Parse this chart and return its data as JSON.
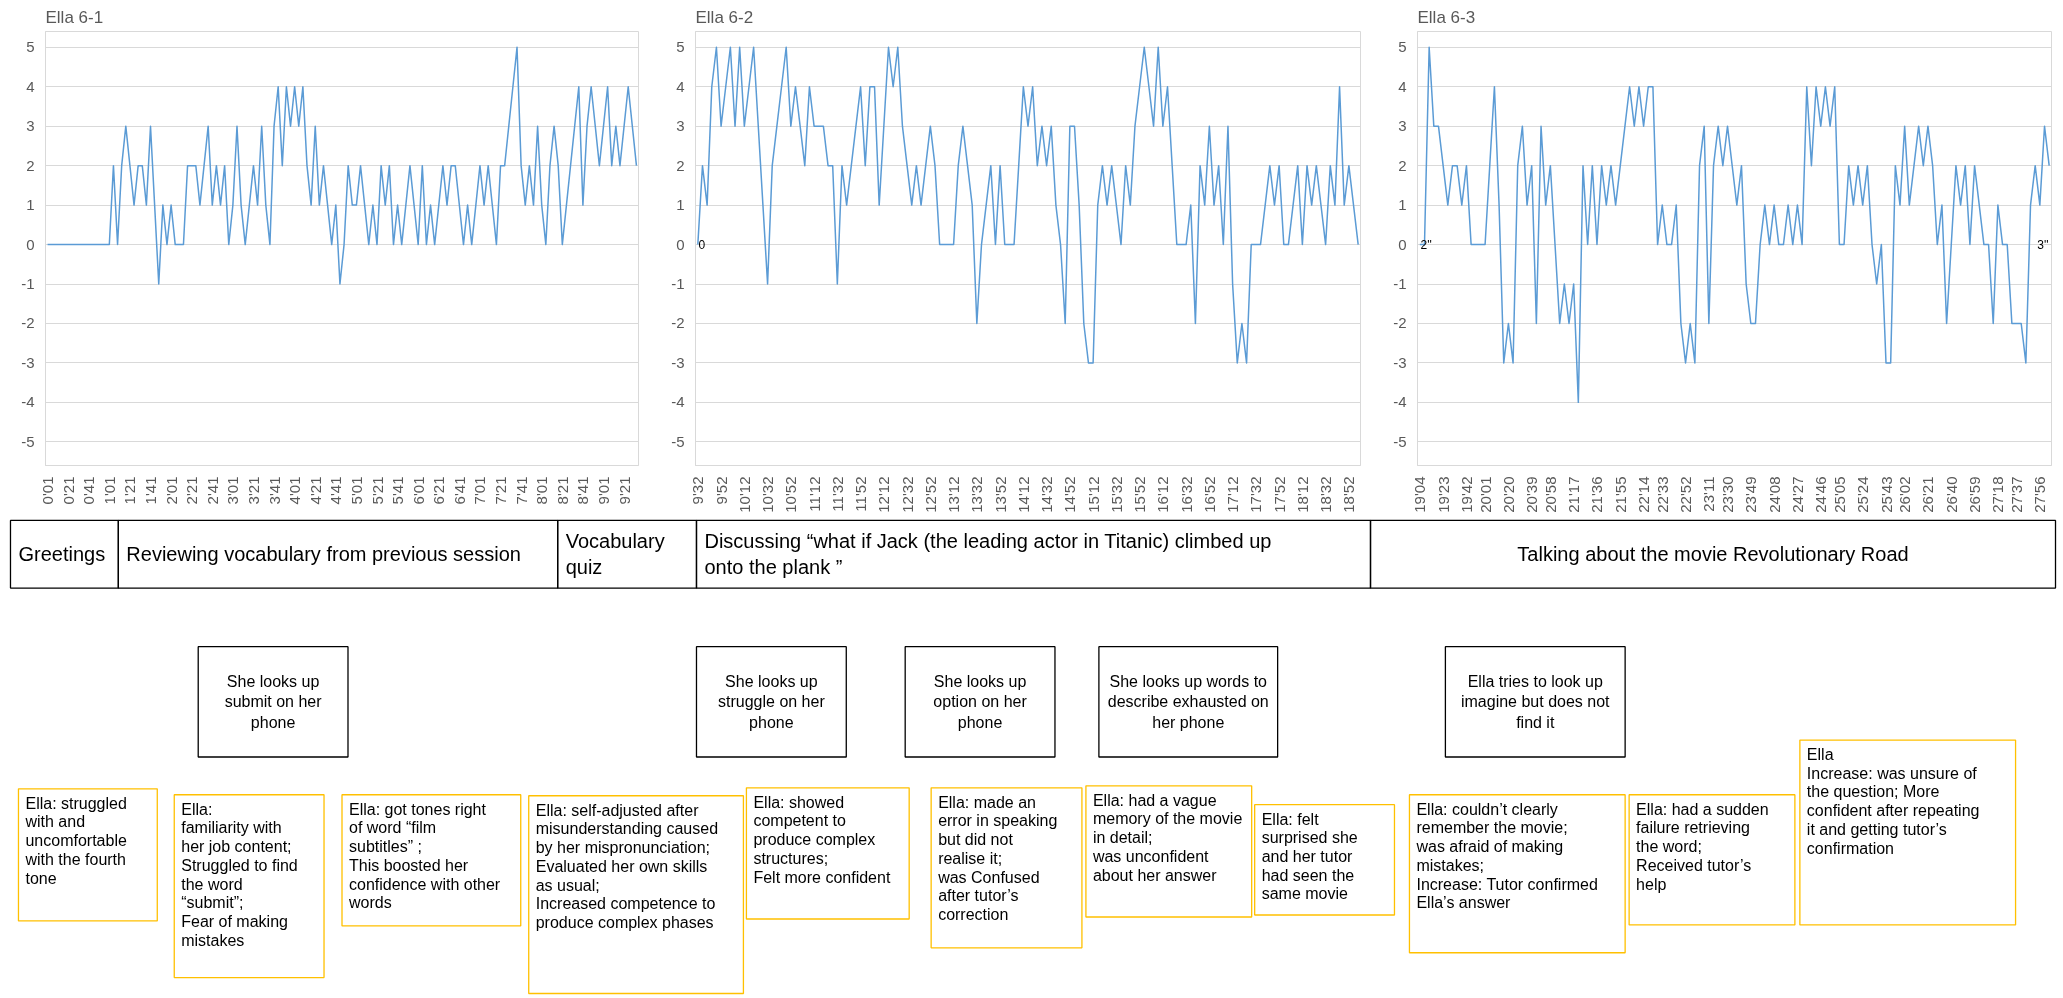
{
  "chart_data": [
    {
      "type": "line",
      "title": "Ella 6-1",
      "color": "#5b9bd5",
      "grid": "y",
      "ylim": [
        -5.6,
        5.4
      ],
      "yticks": [
        -5,
        -4,
        -3,
        -2,
        -1,
        0,
        1,
        2,
        3,
        4,
        5
      ],
      "categories": [
        "0'01",
        null,
        null,
        null,
        null,
        "0'21",
        null,
        null,
        null,
        null,
        "0'41",
        null,
        null,
        null,
        null,
        "1'01",
        null,
        null,
        null,
        null,
        "1'21",
        null,
        null,
        null,
        null,
        "1'41",
        null,
        null,
        null,
        null,
        "2'01",
        null,
        null,
        null,
        null,
        "2'21",
        null,
        null,
        null,
        null,
        "2'41",
        null,
        null,
        null,
        null,
        "3'01",
        null,
        null,
        null,
        null,
        "3'21",
        null,
        null,
        null,
        null,
        "3'41",
        null,
        null,
        null,
        null,
        "4'01",
        null,
        null,
        null,
        null,
        "4'21",
        null,
        null,
        null,
        null,
        "4'41",
        null,
        null,
        null,
        null,
        "5'01",
        null,
        null,
        null,
        null,
        "5'21",
        null,
        null,
        null,
        null,
        "5'41",
        null,
        null,
        null,
        null,
        "6'01",
        null,
        null,
        null,
        null,
        "6'21",
        null,
        null,
        null,
        null,
        "6'41",
        null,
        null,
        null,
        null,
        "7'01",
        null,
        null,
        null,
        null,
        "7'21",
        null,
        null,
        null,
        null,
        "7'41",
        null,
        null,
        null,
        null,
        "8'01",
        null,
        null,
        null,
        null,
        "8'21",
        null,
        null,
        null,
        null,
        "8'41",
        null,
        null,
        null,
        null,
        "9'01",
        null,
        null,
        null,
        null,
        "9'21",
        null,
        null,
        null
      ],
      "values": [
        0,
        0,
        0,
        0,
        0,
        0,
        0,
        0,
        0,
        0,
        0,
        0,
        0,
        0,
        0,
        0,
        2,
        0,
        2,
        3,
        2,
        1,
        2,
        2,
        1,
        3,
        1,
        -1,
        1,
        0,
        1,
        0,
        0,
        0,
        2,
        2,
        2,
        1,
        2,
        3,
        1,
        2,
        1,
        2,
        0,
        1,
        3,
        1,
        0,
        1,
        2,
        1,
        3,
        1,
        0,
        3,
        4,
        2,
        4,
        3,
        4,
        3,
        4,
        2,
        1,
        3,
        1,
        2,
        1,
        0,
        1,
        -1,
        0,
        2,
        1,
        1,
        2,
        1,
        0,
        1,
        0,
        2,
        1,
        2,
        0,
        1,
        0,
        1,
        2,
        1,
        0,
        2,
        0,
        1,
        0,
        1,
        2,
        1,
        2,
        2,
        1,
        0,
        1,
        0,
        1,
        2,
        1,
        2,
        1,
        0,
        2,
        2,
        3,
        4,
        5,
        2,
        1,
        2,
        1,
        3,
        1,
        0,
        2,
        3,
        2,
        0,
        1,
        2,
        3,
        4,
        1,
        3,
        4,
        3,
        2,
        3,
        4,
        2,
        3,
        2,
        3,
        4,
        3,
        2
      ]
    },
    {
      "type": "line",
      "title": "Ella 6-2",
      "color": "#5b9bd5",
      "grid": "y",
      "ylim": [
        -5.6,
        5.4
      ],
      "yticks": [
        -5,
        -4,
        -3,
        -2,
        -1,
        0,
        1,
        2,
        3,
        4,
        5
      ],
      "categories": [
        "9'32",
        null,
        null,
        null,
        null,
        "9'52",
        null,
        null,
        null,
        null,
        "10'12",
        null,
        null,
        null,
        null,
        "10'32",
        null,
        null,
        null,
        null,
        "10'52",
        null,
        null,
        null,
        null,
        "11'12",
        null,
        null,
        null,
        null,
        "11'32",
        null,
        null,
        null,
        null,
        "11'52",
        null,
        null,
        null,
        null,
        "12'12",
        null,
        null,
        null,
        null,
        "12'32",
        null,
        null,
        null,
        null,
        "12'52",
        null,
        null,
        null,
        null,
        "13'12",
        null,
        null,
        null,
        null,
        "13'32",
        null,
        null,
        null,
        null,
        "13'52",
        null,
        null,
        null,
        null,
        "14'12",
        null,
        null,
        null,
        null,
        "14'32",
        null,
        null,
        null,
        null,
        "14'52",
        null,
        null,
        null,
        null,
        "15'12",
        null,
        null,
        null,
        null,
        "15'32",
        null,
        null,
        null,
        null,
        "15'52",
        null,
        null,
        null,
        null,
        "16'12",
        null,
        null,
        null,
        null,
        "16'32",
        null,
        null,
        null,
        null,
        "16'52",
        null,
        null,
        null,
        null,
        "17'12",
        null,
        null,
        null,
        null,
        "17'32",
        null,
        null,
        null,
        null,
        "17'52",
        null,
        null,
        null,
        null,
        "18'12",
        null,
        null,
        null,
        null,
        "18'32",
        null,
        null,
        null,
        null,
        "18'52",
        null,
        null
      ],
      "values": [
        0,
        2,
        1,
        4,
        5,
        3,
        4,
        5,
        3,
        5,
        3,
        4,
        5,
        3,
        1,
        -1,
        2,
        3,
        4,
        5,
        3,
        4,
        3,
        2,
        4,
        3,
        3,
        3,
        2,
        2,
        -1,
        2,
        1,
        2,
        3,
        4,
        2,
        4,
        4,
        1,
        3,
        5,
        4,
        5,
        3,
        2,
        1,
        2,
        1,
        2,
        3,
        2,
        0,
        0,
        0,
        0,
        2,
        3,
        2,
        1,
        -2,
        0,
        1,
        2,
        0,
        2,
        0,
        0,
        0,
        2,
        4,
        3,
        4,
        2,
        3,
        2,
        3,
        1,
        0,
        -2,
        3,
        3,
        1,
        -2,
        -3,
        -3,
        1,
        2,
        1,
        2,
        1,
        0,
        2,
        1,
        3,
        4,
        5,
        4,
        3,
        5,
        3,
        4,
        2,
        0,
        0,
        0,
        1,
        -2,
        2,
        1,
        3,
        1,
        2,
        0,
        3,
        -1,
        -3,
        -2,
        -3,
        0,
        0,
        0,
        1,
        2,
        1,
        2,
        0,
        0,
        1,
        2,
        0,
        2,
        1,
        2,
        1,
        0,
        2,
        1,
        4,
        1,
        2,
        1,
        0
      ],
      "annotations": [
        "0"
      ]
    },
    {
      "type": "line",
      "title": "Ella 6-3",
      "color": "#5b9bd5",
      "grid": "y",
      "ylim": [
        -5.6,
        5.4
      ],
      "yticks": [
        -5,
        -4,
        -3,
        -2,
        -1,
        0,
        1,
        2,
        3,
        4,
        5
      ],
      "categories": [
        "19'04",
        null,
        null,
        null,
        null,
        "19'23",
        null,
        null,
        null,
        null,
        "19'42",
        null,
        null,
        null,
        "20'01",
        null,
        null,
        null,
        null,
        "20'20",
        null,
        null,
        null,
        null,
        "20'39",
        null,
        null,
        null,
        "20'58",
        null,
        null,
        null,
        null,
        "21'17",
        null,
        null,
        null,
        null,
        "21'36",
        null,
        null,
        null,
        null,
        "21'55",
        null,
        null,
        null,
        null,
        "22'14",
        null,
        null,
        null,
        "22'33",
        null,
        null,
        null,
        null,
        "22'52",
        null,
        null,
        null,
        null,
        "23'11",
        null,
        null,
        null,
        "23'30",
        null,
        null,
        null,
        null,
        "23'49",
        null,
        null,
        null,
        null,
        "24'08",
        null,
        null,
        null,
        null,
        "24'27",
        null,
        null,
        null,
        null,
        "24'46",
        null,
        null,
        null,
        "25'05",
        null,
        null,
        null,
        null,
        "25'24",
        null,
        null,
        null,
        null,
        "25'43",
        null,
        null,
        null,
        "26'02",
        null,
        null,
        null,
        null,
        "26'21",
        null,
        null,
        null,
        null,
        "26'40",
        null,
        null,
        null,
        null,
        "26'59",
        null,
        null,
        null,
        null,
        "27'18",
        null,
        null,
        null,
        "27'37",
        null,
        null,
        null,
        null,
        "27'56",
        null,
        null
      ],
      "values": [
        0,
        0,
        5,
        3,
        3,
        2,
        1,
        2,
        2,
        1,
        2,
        0,
        0,
        0,
        0,
        2,
        4,
        1,
        -3,
        -2,
        -3,
        2,
        3,
        1,
        2,
        -2,
        3,
        1,
        2,
        0,
        -2,
        -1,
        -2,
        -1,
        -4,
        2,
        0,
        2,
        0,
        2,
        1,
        2,
        1,
        2,
        3,
        4,
        3,
        4,
        3,
        4,
        4,
        0,
        1,
        0,
        0,
        1,
        -2,
        -3,
        -2,
        -3,
        2,
        3,
        -2,
        2,
        3,
        2,
        3,
        2,
        1,
        2,
        -1,
        -2,
        -2,
        0,
        1,
        0,
        1,
        0,
        0,
        1,
        0,
        1,
        0,
        4,
        2,
        4,
        3,
        4,
        3,
        4,
        0,
        0,
        2,
        1,
        2,
        1,
        2,
        0,
        -1,
        0,
        -3,
        -3,
        2,
        1,
        3,
        1,
        2,
        3,
        2,
        3,
        2,
        0,
        1,
        -2,
        0,
        2,
        1,
        2,
        0,
        2,
        1,
        0,
        0,
        -2,
        1,
        0,
        0,
        -2,
        -2,
        -2,
        -3,
        1,
        2,
        1,
        3,
        2
      ],
      "annotations": [
        "2''",
        "3''"
      ]
    },
    {
      "type": "other",
      "annotations": [
        "Greetings",
        "Reviewing vocabulary from previous session",
        "Vocabulary quiz",
        "Discussing “what if Jack (the leading actor in Titanic) climbed  up onto the plank ”",
        "Talking about the movie Revolutionary Road",
        "She looks up submit on her phone",
        "She looks up struggle on her phone",
        "She looks up option on her phone",
        "She looks up words to describe exhausted on her phone",
        "Ella tries to look up imagine but does not find it",
        "Ella: struggled with and uncomfortable with the fourth tone",
        "Ella:  familiarity with her job content;\nStruggled to find the word “submit”;\nFear of making mistakes",
        "Ella: got tones right of word “film subtitles” ;\nThis boosted her confidence with other words",
        "Ella: self-adjusted after misunderstanding caused by her mispronunciation;\nEvaluated her own skills as usual;\nIncreased competence to produce complex phases",
        "Ella: showed competent to produce complex structures;\nFelt more confident",
        "Ella: made an error in speaking but did not realise it;\nwas Confused after tutor’s correction",
        "Ella: had a vague memory of the movie in detail;\nwas unconfident about her answer",
        "Ella: felt surprised she and her tutor had seen the same movie",
        "Ella: couldn’t clearly remember the movie;\nwas afraid of making mistakes;\nIncrease: Tutor confirmed Ella’s answer",
        "Ella: had a sudden failure retrieving the word;\nReceived tutor’s help",
        "Ella\nIncrease: was unsure of the question; More confident after repeating it and getting tutor’s confirmation"
      ]
    }
  ]
}
